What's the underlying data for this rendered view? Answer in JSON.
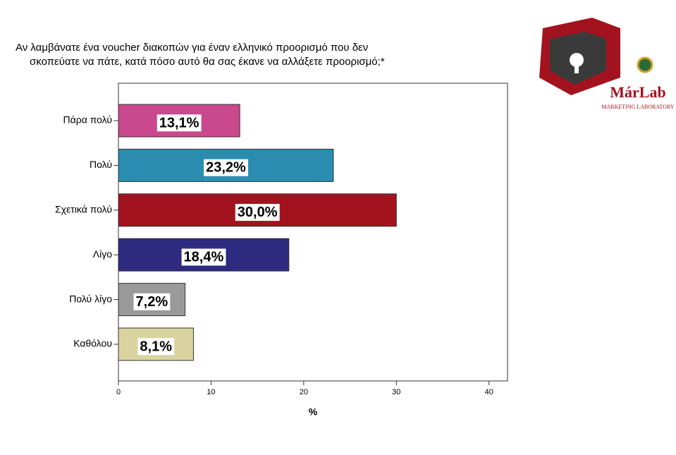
{
  "chart_data": {
    "type": "hbar",
    "title": [
      "Αν λαμβάνατε ένα voucher διακοπών για έναν ελληνικό προορισμό που δεν",
      "σκοπεύατε να πάτε, κατά πόσο αυτό θα σας έκανε να αλλάξετε προορισμό;*"
    ],
    "categories": [
      "Πάρα πολύ",
      "Πολύ",
      "Σχετικά πολύ",
      "Λίγο",
      "Πολύ λίγο",
      "Καθόλου"
    ],
    "values": [
      13.1,
      23.2,
      30.0,
      18.4,
      7.2,
      8.1
    ],
    "value_labels": [
      "13,1%",
      "23,2%",
      "30,0%",
      "18,4%",
      "7,2%",
      "8,1%"
    ],
    "colors": [
      "#c9488e",
      "#2a8db0",
      "#a3131f",
      "#2e2a80",
      "#9a9a9a",
      "#d9d3a0"
    ],
    "xlim": [
      0,
      42
    ],
    "xticks": [
      0,
      10,
      20,
      30,
      40
    ],
    "xlabel": "%"
  },
  "logo": {
    "name": "MárLab",
    "subtitle": "MARKETING LABORATORY"
  }
}
